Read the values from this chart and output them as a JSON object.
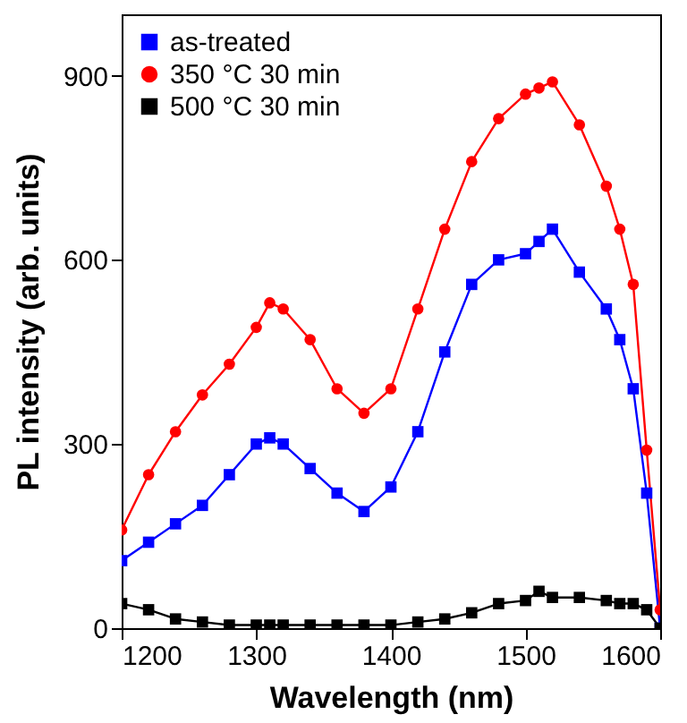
{
  "chart_data": {
    "type": "line",
    "xlabel": "Wavelength (nm)",
    "ylabel": "PL intensity (arb. units)",
    "x": [
      1200,
      1220,
      1240,
      1260,
      1280,
      1300,
      1310,
      1320,
      1340,
      1360,
      1380,
      1400,
      1420,
      1440,
      1460,
      1480,
      1500,
      1510,
      1520,
      1540,
      1560,
      1570,
      1580,
      1590,
      1600
    ],
    "series": [
      {
        "name": "as-treated",
        "color": "#0000ff",
        "marker": "square",
        "values": [
          110,
          140,
          170,
          200,
          250,
          300,
          310,
          300,
          260,
          220,
          190,
          230,
          320,
          450,
          560,
          600,
          610,
          630,
          650,
          580,
          520,
          470,
          390,
          220,
          0
        ]
      },
      {
        "name": "350 °C 30 min",
        "color": "#ff0000",
        "marker": "circle",
        "values": [
          160,
          250,
          320,
          380,
          430,
          490,
          530,
          520,
          470,
          390,
          350,
          390,
          520,
          650,
          760,
          830,
          870,
          880,
          890,
          820,
          720,
          650,
          560,
          290,
          30
        ]
      },
      {
        "name": "500 °C 30 min",
        "color": "#000000",
        "marker": "square",
        "values": [
          40,
          30,
          15,
          10,
          5,
          5,
          5,
          5,
          5,
          5,
          5,
          5,
          10,
          15,
          25,
          40,
          45,
          60,
          50,
          50,
          45,
          40,
          40,
          30,
          0
        ]
      }
    ],
    "xlim": [
      1200,
      1600
    ],
    "xticks": [
      1200,
      1300,
      1400,
      1500,
      1600
    ],
    "ylim": [
      0,
      1000
    ],
    "yticks": [
      0,
      300,
      600,
      900
    ],
    "legend": "top left",
    "grid": false,
    "line_style": "solid"
  }
}
